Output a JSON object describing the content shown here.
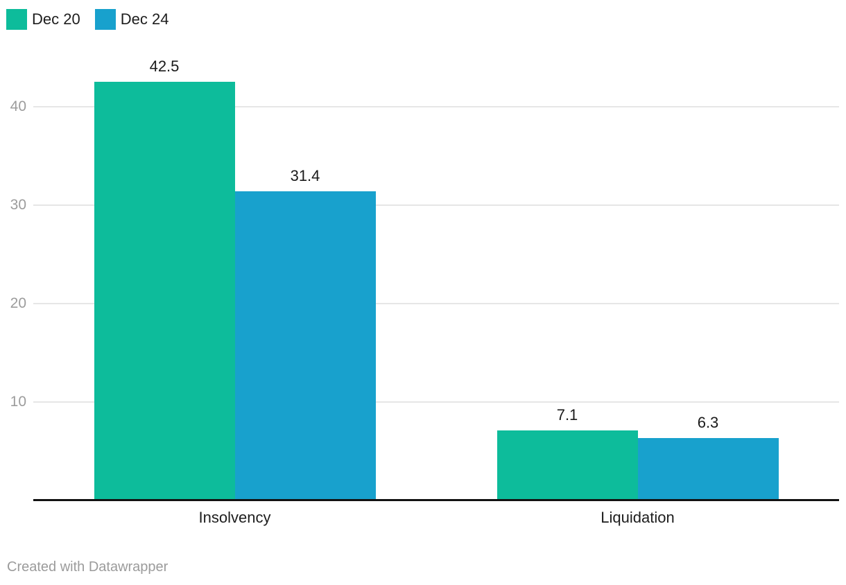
{
  "chart_data": {
    "type": "bar",
    "categories": [
      "Insolvency",
      "Liquidation"
    ],
    "series": [
      {
        "name": "Dec 20",
        "color": "#0dbc9b",
        "values": [
          42.5,
          7.1
        ]
      },
      {
        "name": "Dec 24",
        "color": "#18a1cd",
        "values": [
          31.4,
          6.3
        ]
      }
    ],
    "title": "",
    "xlabel": "",
    "ylabel": "",
    "ylim": [
      0,
      42.5
    ],
    "yticks": [
      10,
      20,
      30,
      40
    ],
    "grid": true,
    "legend_position": "top-left",
    "value_labels": true
  },
  "legend": {
    "items": [
      {
        "label": "Dec 20"
      },
      {
        "label": "Dec 24"
      }
    ]
  },
  "footer": {
    "credit": "Created with Datawrapper"
  },
  "colors": {
    "series_dec_20": "#0dbc9b",
    "series_dec_24": "#18a1cd",
    "gridline": "#e6e6e6",
    "axis_line": "#121212",
    "tick_label": "#9c9c9c",
    "category_label": "#1d1d1d",
    "value_label": "#1a1a1a",
    "credit": "#9b9b9b",
    "background": "#ffffff"
  }
}
